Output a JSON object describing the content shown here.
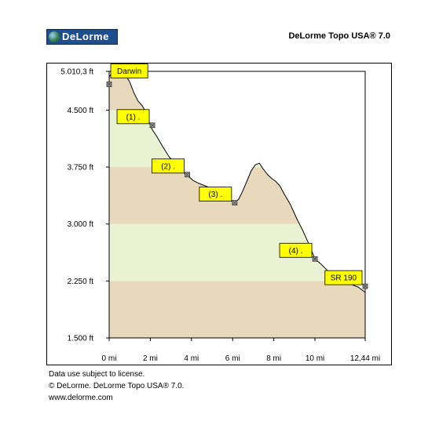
{
  "header": {
    "logo_text": "DeLorme",
    "product": "DeLorme Topo USA® 7.0"
  },
  "footer": {
    "line1": "Data use subject to license.",
    "line2": "© DeLorme. DeLorme Topo USA® 7.0.",
    "line3": "www.delorme.com"
  },
  "colors": {
    "band_tan": "#e8d8bc",
    "band_green": "#e9f3d3",
    "label_bg": "#ffff00"
  },
  "chart_data": {
    "type": "area",
    "title": "",
    "xlabel": "",
    "ylabel": "",
    "xlim": [
      0,
      12.44
    ],
    "ylim": [
      1500,
      5010.3
    ],
    "x_ticks": [
      0,
      2,
      4,
      6,
      8,
      10,
      12.44
    ],
    "x_tick_labels": [
      "0 mi",
      "2 mi",
      "4 mi",
      "6 mi",
      "8 mi",
      "10 mi",
      "12,44 mi"
    ],
    "y_ticks": [
      1500,
      2250,
      3000,
      3750,
      4500,
      5010.3
    ],
    "y_tick_labels": [
      "1.500 ft",
      "2.250 ft",
      "3.000 ft",
      "3.750 ft",
      "4.500 ft",
      "5.010,3 ft"
    ],
    "bands": [
      {
        "from": 1500,
        "to": 2250,
        "color": "band_tan"
      },
      {
        "from": 2250,
        "to": 3000,
        "color": "band_green"
      },
      {
        "from": 3000,
        "to": 3750,
        "color": "band_tan"
      },
      {
        "from": 3750,
        "to": 4500,
        "color": "band_green"
      },
      {
        "from": 4500,
        "to": 5010.3,
        "color": "band_tan"
      }
    ],
    "profile": {
      "x": [
        0,
        0.2,
        0.5,
        0.8,
        1.0,
        1.2,
        1.4,
        1.6,
        1.8,
        2.0,
        2.1,
        2.3,
        2.6,
        2.9,
        3.2,
        3.5,
        3.8,
        4.1,
        4.4,
        4.7,
        5.0,
        5.3,
        5.6,
        5.9,
        6.1,
        6.3,
        6.5,
        6.7,
        6.9,
        7.1,
        7.3,
        7.5,
        7.7,
        7.9,
        8.1,
        8.3,
        8.5,
        8.8,
        9.1,
        9.4,
        9.7,
        10.0,
        10.3,
        10.6,
        10.9,
        11.2,
        11.5,
        11.8,
        12.1,
        12.44
      ],
      "y": [
        4940,
        5010,
        5000,
        4960,
        4870,
        4730,
        4620,
        4560,
        4470,
        4300,
        4240,
        4160,
        4020,
        3890,
        3790,
        3700,
        3640,
        3570,
        3530,
        3500,
        3460,
        3400,
        3360,
        3310,
        3280,
        3330,
        3440,
        3570,
        3700,
        3780,
        3800,
        3720,
        3650,
        3600,
        3560,
        3500,
        3400,
        3260,
        3080,
        2920,
        2740,
        2540,
        2470,
        2390,
        2320,
        2270,
        2230,
        2200,
        2170,
        2100
      ]
    },
    "waypoints": [
      {
        "label": "Darwin",
        "x": 0.0,
        "y": 4840
      },
      {
        "label": "(1) .",
        "x": 2.1,
        "y": 4300
      },
      {
        "label": "(2) .",
        "x": 3.8,
        "y": 3650
      },
      {
        "label": "(3) .",
        "x": 6.1,
        "y": 3280
      },
      {
        "label": "(4) .",
        "x": 10.0,
        "y": 2540
      },
      {
        "label": "SR 190",
        "x": 12.44,
        "y": 2180
      }
    ]
  }
}
